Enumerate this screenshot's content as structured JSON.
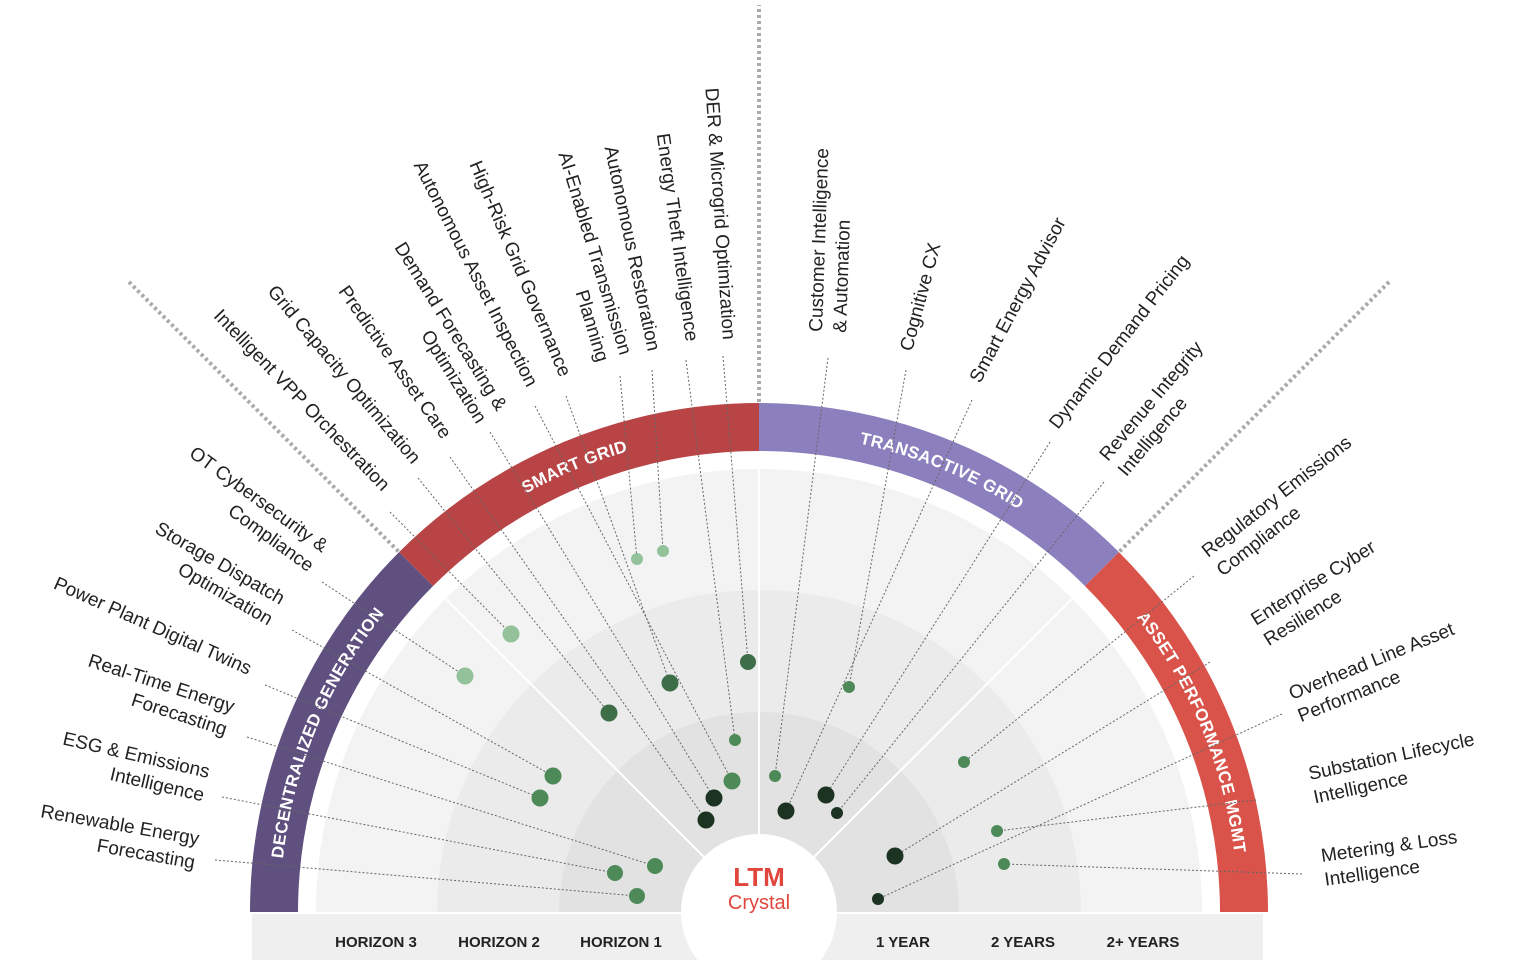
{
  "logo": {
    "name": "LTM",
    "sub": "Crystal"
  },
  "segments": [
    {
      "title": "DECENTRALIZED GENERATION",
      "items": [
        {
          "label": [
            "Renewable Energy",
            "Forecasting"
          ]
        },
        {
          "label": [
            "ESG & Emissions",
            "Intelligence"
          ]
        },
        {
          "label": [
            "Real-Time Energy",
            "Forecasting"
          ]
        },
        {
          "label": [
            "Power Plant Digital Twins"
          ]
        },
        {
          "label": [
            "Storage Dispatch",
            "Optimization"
          ]
        },
        {
          "label": [
            "OT Cybersecurity &",
            "Compliance"
          ]
        }
      ]
    },
    {
      "title": "SMART GRID",
      "items": [
        {
          "label": [
            "Intelligent VPP Orchestration"
          ]
        },
        {
          "label": [
            "Grid Capacity Optimization"
          ]
        },
        {
          "label": [
            "Predictive Asset Care"
          ]
        },
        {
          "label": [
            "Demand Forecasting &",
            "Optimization"
          ]
        },
        {
          "label": [
            "Autonomous Asset Inspection"
          ]
        },
        {
          "label": [
            "High-Risk Grid Governance"
          ]
        },
        {
          "label": [
            "AI-Enabled Transmission",
            "Planning"
          ]
        },
        {
          "label": [
            "Autonomous Restoration"
          ]
        },
        {
          "label": [
            "Energy Theft Intelligence"
          ]
        },
        {
          "label": [
            "DER & Microgrid Optimization"
          ]
        }
      ]
    },
    {
      "title": "TRANSACTIVE GRID",
      "items": [
        {
          "label": [
            "Customer Intelligence",
            "& Automation"
          ]
        },
        {
          "label": [
            "Cognitive CX"
          ]
        },
        {
          "label": [
            "Smart Energy Advisor"
          ]
        },
        {
          "label": [
            "Dynamic Demand Pricing"
          ]
        },
        {
          "label": [
            "Revenue Integrity",
            "Intelligence"
          ]
        }
      ]
    },
    {
      "title": "ASSET PERFORMANCE MGMT",
      "items": [
        {
          "label": [
            "Regulatory Emissions",
            "Compliance"
          ]
        },
        {
          "label": [
            "Enterprise Cyber",
            "Resilience"
          ]
        },
        {
          "label": [
            "Overhead Line Asset",
            "Performance"
          ]
        },
        {
          "label": [
            "Substation Lifecycle",
            "Intelligence"
          ]
        },
        {
          "label": [
            "Metering & Loss",
            "Intelligence"
          ]
        }
      ]
    }
  ],
  "axis": {
    "labels": [
      "HORIZON 3",
      "HORIZON 2",
      "HORIZON 1",
      "1 YEAR",
      "2 YEARS",
      "2+ YEARS"
    ]
  }
}
